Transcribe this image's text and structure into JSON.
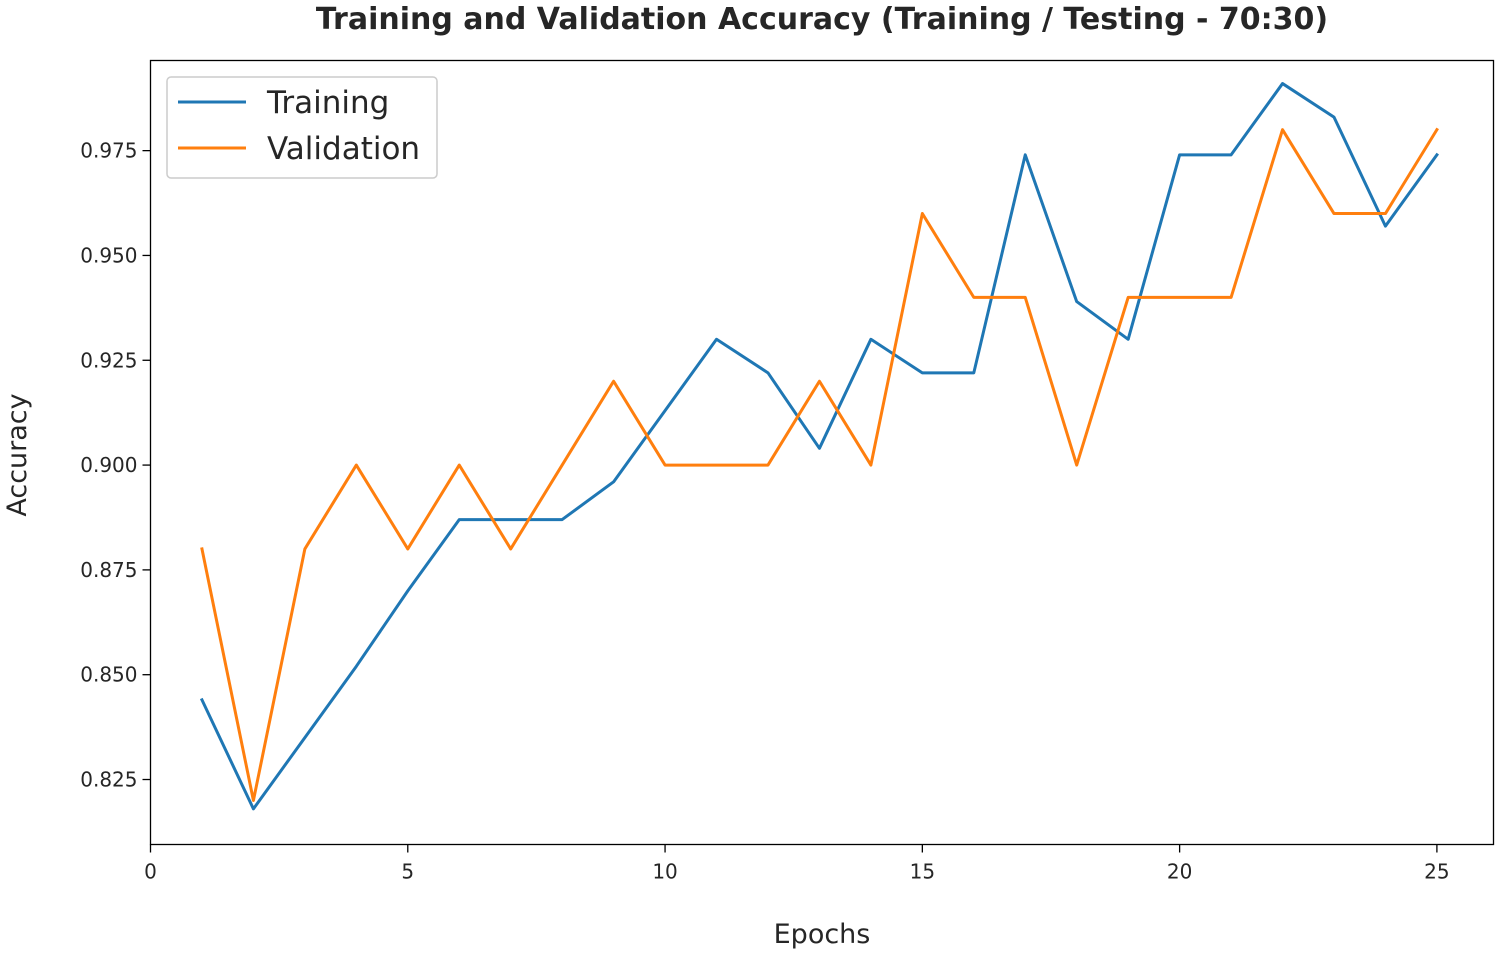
{
  "chart_data": {
    "type": "line",
    "title": "Training and Validation Accuracy (Training / Testing - 70:30)",
    "xlabel": "Epochs",
    "ylabel": "Accuracy",
    "xlim": [
      0,
      26.1
    ],
    "ylim": [
      0.8095,
      0.9965
    ],
    "xticks": [
      0,
      5,
      10,
      15,
      20,
      25
    ],
    "yticks": [
      0.825,
      0.85,
      0.875,
      0.9,
      0.925,
      0.95,
      0.975
    ],
    "grid": false,
    "legend_position": "upper left",
    "x": [
      1,
      2,
      3,
      4,
      5,
      6,
      7,
      8,
      9,
      10,
      11,
      12,
      13,
      14,
      15,
      16,
      17,
      18,
      19,
      20,
      21,
      22,
      23,
      24,
      25
    ],
    "series": [
      {
        "name": "Training",
        "color": "#1f77b4",
        "values": [
          0.844,
          0.818,
          0.835,
          0.852,
          0.87,
          0.887,
          0.887,
          0.887,
          0.896,
          0.913,
          0.93,
          0.922,
          0.904,
          0.93,
          0.922,
          0.922,
          0.974,
          0.939,
          0.93,
          0.974,
          0.974,
          0.991,
          0.983,
          0.957,
          0.974
        ]
      },
      {
        "name": "Validation",
        "color": "#ff7f0e",
        "values": [
          0.88,
          0.82,
          0.88,
          0.9,
          0.88,
          0.9,
          0.88,
          0.9,
          0.92,
          0.9,
          0.9,
          0.9,
          0.92,
          0.9,
          0.96,
          0.94,
          0.94,
          0.9,
          0.94,
          0.94,
          0.94,
          0.98,
          0.96,
          0.96,
          0.98
        ]
      }
    ]
  }
}
